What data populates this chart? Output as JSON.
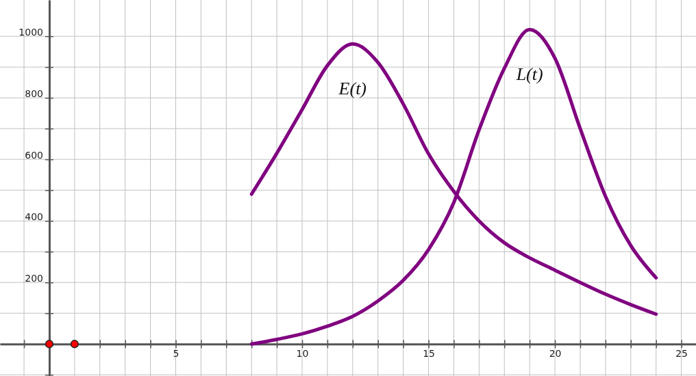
{
  "chart_data": {
    "type": "line",
    "xlim": [
      -1.95,
      25.58
    ],
    "ylim": [
      -104,
      1118
    ],
    "xticks": [
      {
        "value": -1,
        "label": null
      },
      {
        "value": 0,
        "label": null
      },
      {
        "value": 1,
        "label": null
      },
      {
        "value": 2,
        "label": null
      },
      {
        "value": 3,
        "label": null
      },
      {
        "value": 4,
        "label": null
      },
      5,
      {
        "value": 6,
        "label": null
      },
      {
        "value": 7,
        "label": null
      },
      {
        "value": 8,
        "label": null
      },
      {
        "value": 9,
        "label": null
      },
      10,
      {
        "value": 11,
        "label": null
      },
      {
        "value": 12,
        "label": null
      },
      {
        "value": 13,
        "label": null
      },
      {
        "value": 14,
        "label": null
      },
      15,
      {
        "value": 16,
        "label": null
      },
      {
        "value": 17,
        "label": null
      },
      {
        "value": 18,
        "label": null
      },
      {
        "value": 19,
        "label": null
      },
      20,
      {
        "value": 21,
        "label": null
      },
      {
        "value": 22,
        "label": null
      },
      {
        "value": 23,
        "label": null
      },
      {
        "value": 24,
        "label": null
      },
      25
    ],
    "yticks": [
      {
        "value": -100,
        "label": null
      },
      {
        "value": 0,
        "label": null
      },
      {
        "value": 100,
        "label": null
      },
      200,
      {
        "value": 300,
        "label": null
      },
      400,
      {
        "value": 500,
        "label": null
      },
      600,
      {
        "value": 700,
        "label": null
      },
      800,
      {
        "value": 900,
        "label": null
      },
      1000
    ],
    "grid": true,
    "line_style": "solid",
    "marker": "none",
    "series": [
      {
        "name": "E(t)",
        "color": "#800080",
        "x": [
          8,
          9,
          10,
          11,
          12,
          13,
          14,
          15,
          16,
          17,
          18,
          19,
          20,
          21,
          22,
          23,
          24
        ],
        "values": [
          487,
          620,
          762,
          905,
          975,
          915,
          780,
          618,
          496,
          400,
          329,
          280,
          240,
          200,
          162,
          128,
          97
        ]
      },
      {
        "name": "L(t)",
        "color": "#800080",
        "x": [
          8,
          9,
          10,
          11,
          12,
          13,
          14,
          15,
          16,
          17,
          18,
          19,
          20,
          21,
          22,
          23,
          24
        ],
        "values": [
          0,
          15,
          33,
          58,
          90,
          140,
          207,
          307,
          460,
          696,
          896,
          1022,
          929,
          700,
          480,
          320,
          215
        ]
      },
      {
        "type": "scatter",
        "color": "#ff0000",
        "marker": "circle",
        "x": [
          0,
          1
        ],
        "values": [
          0,
          0
        ]
      }
    ]
  }
}
